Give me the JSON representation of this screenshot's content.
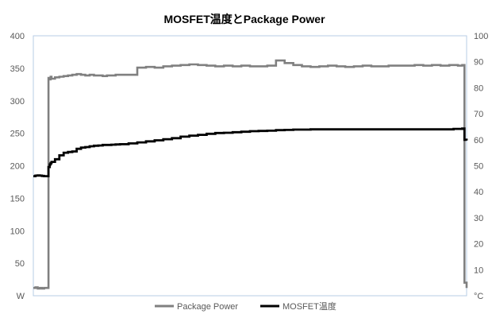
{
  "chart_data": {
    "type": "line",
    "title": "MOSFET温度とPackage Power",
    "x": [
      0,
      0.5,
      1,
      1.5,
      2,
      2.5,
      3,
      3.5,
      3.8,
      4,
      4.2,
      5,
      6,
      7,
      8,
      9,
      10,
      11,
      12,
      13,
      14,
      15,
      16,
      17,
      18,
      19,
      20,
      22,
      24,
      26,
      28,
      30,
      32,
      34,
      36,
      38,
      40,
      42,
      44,
      46,
      48,
      50,
      52,
      54,
      56,
      58,
      60,
      62,
      64,
      66,
      68,
      70,
      72,
      74,
      76,
      78,
      80,
      82,
      84,
      86,
      88,
      90,
      92,
      94,
      96,
      97,
      98,
      99,
      99.5,
      100
    ],
    "xlim": [
      0,
      100
    ],
    "y_left": {
      "unit": "W",
      "ylim": [
        0,
        400
      ],
      "ticks": [
        "400",
        "350",
        "300",
        "250",
        "200",
        "150",
        "100",
        "50",
        "W"
      ]
    },
    "y_right": {
      "unit": "°C",
      "ylim": [
        0,
        100
      ],
      "ticks": [
        "100",
        "90",
        "80",
        "70",
        "60",
        "50",
        "40",
        "30",
        "20",
        "10",
        "°C"
      ]
    },
    "grid": false,
    "legend_position": "bottom",
    "series": [
      {
        "name": "Package Power",
        "axis": "left",
        "color": "#808080",
        "values": [
          12,
          13,
          11,
          12,
          11,
          12,
          12,
          335,
          333,
          337,
          334,
          336,
          337,
          338,
          339,
          340,
          341,
          340,
          339,
          340,
          339,
          339,
          338,
          339,
          339,
          340,
          340,
          340,
          351,
          352,
          351,
          353,
          354,
          355,
          356,
          355,
          354,
          353,
          354,
          353,
          354,
          353,
          353,
          354,
          362,
          358,
          355,
          353,
          352,
          353,
          354,
          353,
          352,
          353,
          354,
          353,
          353,
          354,
          354,
          354,
          355,
          354,
          355,
          354,
          355,
          355,
          354,
          355,
          20,
          12
        ]
      },
      {
        "name": "MOSFET温度",
        "axis": "right",
        "color": "#000000",
        "values": [
          46,
          46.2,
          46.3,
          46.2,
          46.1,
          46,
          46,
          49.5,
          50.5,
          51,
          51.5,
          52.5,
          54,
          55,
          55.3,
          55.5,
          56.5,
          57,
          57.2,
          57.5,
          57.7,
          57.8,
          58,
          58,
          58.1,
          58.2,
          58.3,
          58.6,
          59,
          59.4,
          59.8,
          60.2,
          60.6,
          61.2,
          61.6,
          61.9,
          62.3,
          62.6,
          62.7,
          62.9,
          63.1,
          63.3,
          63.4,
          63.5,
          63.7,
          63.8,
          63.9,
          63.9,
          64,
          64,
          64,
          64,
          64,
          64,
          64,
          64,
          64,
          64,
          64,
          64,
          64,
          64,
          64,
          64,
          64,
          64.2,
          64.2,
          64.3,
          60,
          59.7
        ]
      }
    ]
  }
}
